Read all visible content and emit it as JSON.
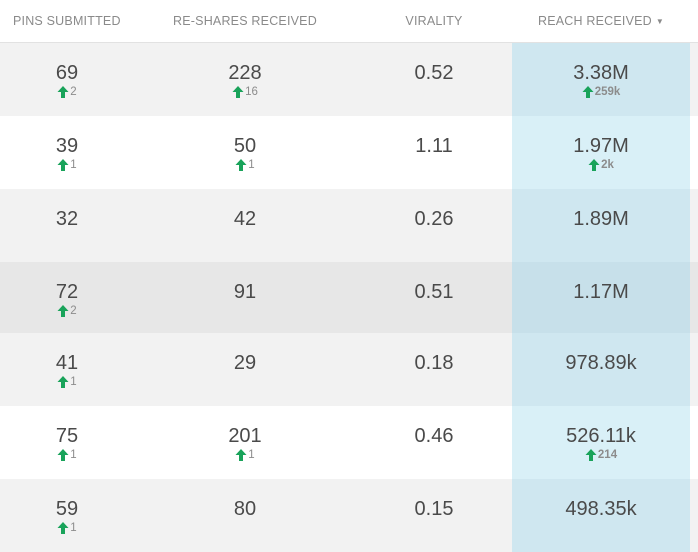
{
  "header": {
    "pins_submitted": "PINS SUBMITTED",
    "reshares_received": "RE-SHARES RECEIVED",
    "virality": "VIRALITY",
    "reach_received": "REACH RECEIVED",
    "sort_icon": "caret-down-icon"
  },
  "colors": {
    "arrow_green": "#19a35a",
    "reach_column": "#d4ecf4"
  },
  "rows": [
    {
      "pins": "69",
      "pins_delta": "2",
      "reshares": "228",
      "reshares_delta": "16",
      "virality": "0.52",
      "reach": "3.38M",
      "reach_delta": "259k"
    },
    {
      "pins": "39",
      "pins_delta": "1",
      "reshares": "50",
      "reshares_delta": "1",
      "virality": "1.11",
      "reach": "1.97M",
      "reach_delta": "2k"
    },
    {
      "pins": "32",
      "pins_delta": "",
      "reshares": "42",
      "reshares_delta": "",
      "virality": "0.26",
      "reach": "1.89M",
      "reach_delta": ""
    },
    {
      "pins": "72",
      "pins_delta": "2",
      "reshares": "91",
      "reshares_delta": "",
      "virality": "0.51",
      "reach": "1.17M",
      "reach_delta": ""
    },
    {
      "pins": "41",
      "pins_delta": "1",
      "reshares": "29",
      "reshares_delta": "",
      "virality": "0.18",
      "reach": "978.89k",
      "reach_delta": ""
    },
    {
      "pins": "75",
      "pins_delta": "1",
      "reshares": "201",
      "reshares_delta": "1",
      "virality": "0.46",
      "reach": "526.11k",
      "reach_delta": "214"
    },
    {
      "pins": "59",
      "pins_delta": "1",
      "reshares": "80",
      "reshares_delta": "",
      "virality": "0.15",
      "reach": "498.35k",
      "reach_delta": ""
    }
  ]
}
